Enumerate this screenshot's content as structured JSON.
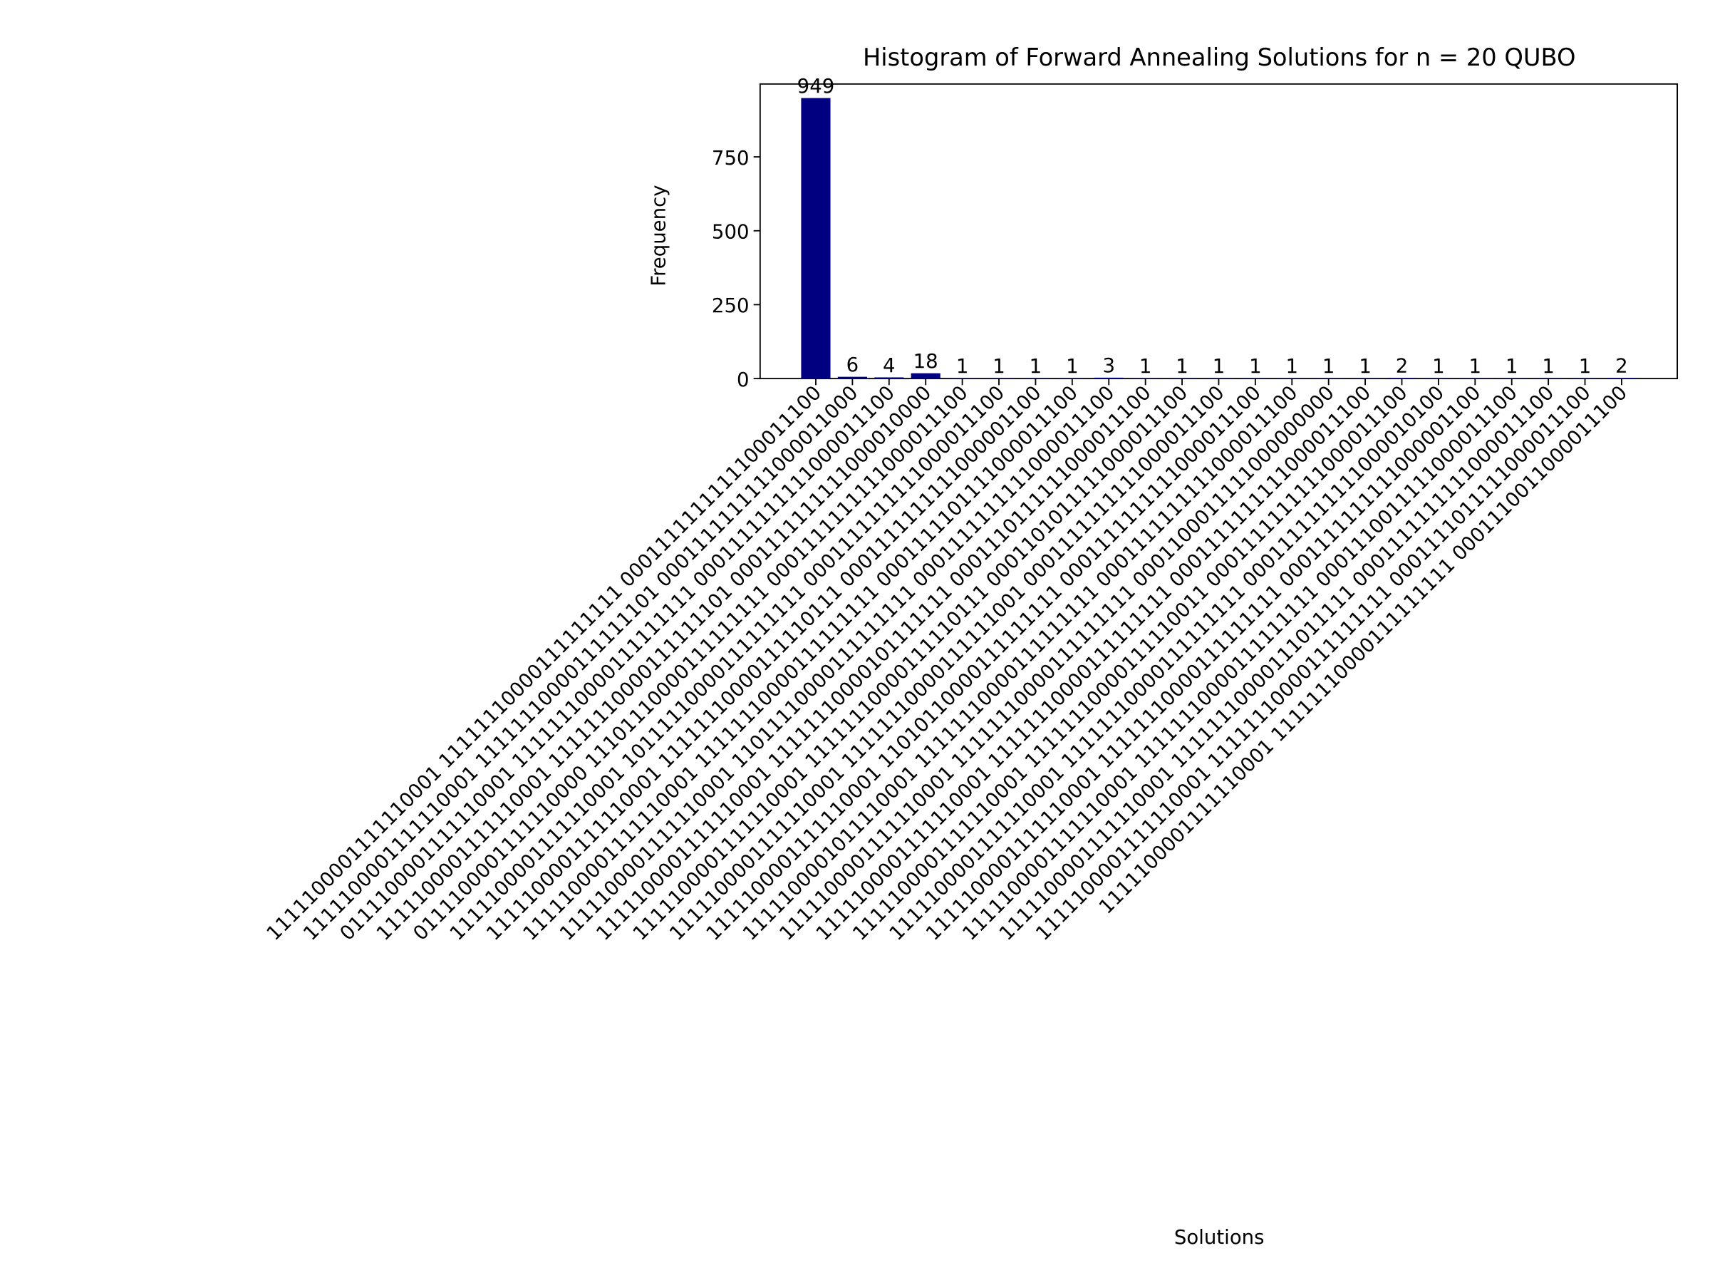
{
  "chart_data": {
    "type": "bar",
    "title": "Histogram of Forward Annealing Solutions for n = 20 QUBO",
    "xlabel": "Solutions",
    "ylabel": "Frequency",
    "categories": [
      "1111100001111110001 11111110000111111111 0001111111111100011100",
      "1111100001111110001 11111110000111111101 0001111111111000011000",
      "0111100001111110001 11111110000111111111 0001111111111000011100",
      "1111100001111110001 11111110000111111101 0001111111111000010000",
      "0111100001111110000 11101110000111111111 0001111111111000011100",
      "1111100001111110001 10111110000111111111 0001111111111000011100",
      "1111100001111110001 11111110000111110111 0001111111111000001100",
      "1111100001111110001 11111110000111111111 0001111101111000011100",
      "1111100001111110001 11011110000111111111 0001111111111000011100",
      "1111100001111110001 11111110000101111111 0001110111111000011100",
      "1111100001111110001 11111110000111110111 0001101011111000011100",
      "1111100001111110001 11111110000111111001 0001111111111000011100",
      "1111100001111110001 11010110000111111111 0001111111111000011100",
      "1111100001011110001 11111110000111111111 0001111111111000011100",
      "1111100001111110001 11111110000111111111 0001100011111000000000",
      "1111100001111110001 11111110000111111111 0001111111111000011100",
      "1111100001111110001 11111110000111110011 0001111111111000011100",
      "1111100001111110001 11111110000111111111 0001111111111000010100",
      "1111100001111110001 11111110000111111111 0001111111111000001100",
      "1111100001111110001 11111110000111111111 0001110011111000011100",
      "1111100001111110001 11111110000111011111 0001111111111000011100",
      "1111100001111110001 11111110000111111111 0001111011111000011100",
      "1111100001111110001 11111110000111111111 0001110011000011100"
    ],
    "values": [
      949,
      6,
      4,
      18,
      1,
      1,
      1,
      1,
      3,
      1,
      1,
      1,
      1,
      1,
      1,
      1,
      2,
      1,
      1,
      1,
      1,
      1,
      2
    ],
    "color": "#000080",
    "ylim": [
      0,
      996.45
    ],
    "yticks": [
      0,
      250,
      500,
      750
    ]
  }
}
